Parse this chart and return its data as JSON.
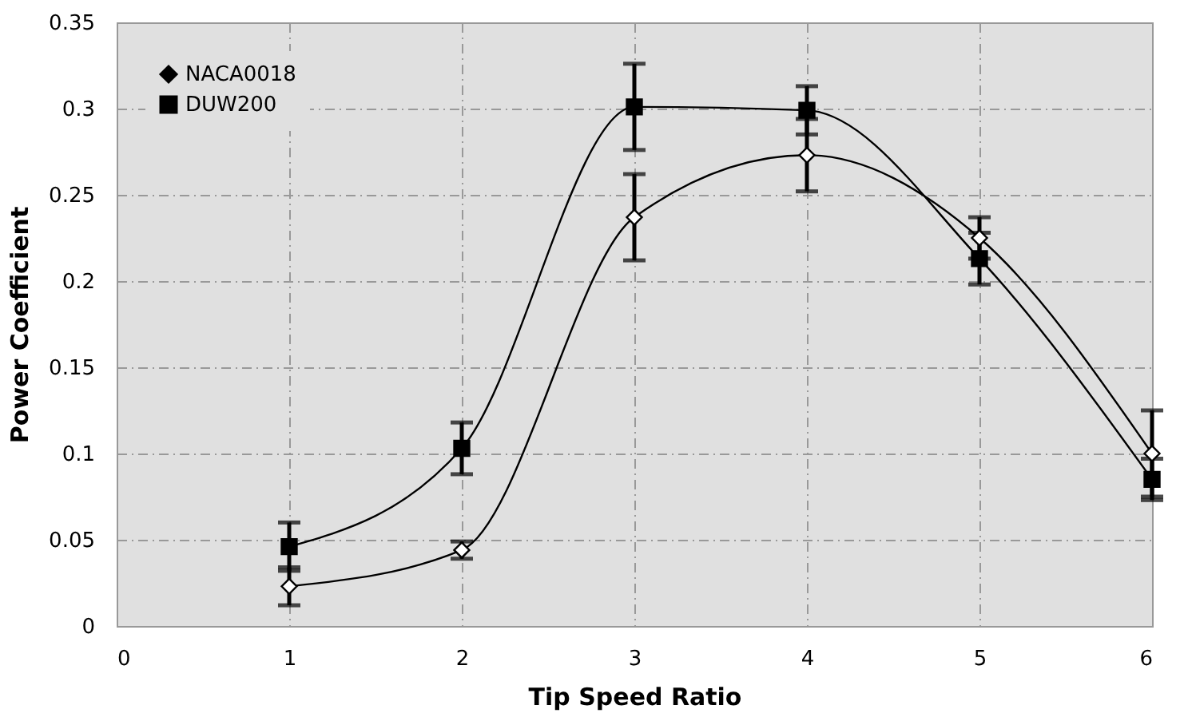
{
  "chart_data": {
    "type": "line",
    "xlabel": "Tip Speed Ratio",
    "ylabel": "Power Coefficient",
    "x": [
      1,
      2,
      3,
      4,
      5,
      6
    ],
    "series": [
      {
        "name": "NACA0018",
        "color": "#000000",
        "marker": "diamond",
        "values": [
          0.023,
          0.044,
          0.237,
          0.273,
          0.225,
          0.1
        ],
        "errors": [
          0.011,
          0.005,
          0.025,
          0.021,
          0.012,
          0.025
        ]
      },
      {
        "name": "DUW200",
        "color": "#000000",
        "marker": "square",
        "values": [
          0.046,
          0.103,
          0.301,
          0.299,
          0.213,
          0.085
        ],
        "errors": [
          0.014,
          0.015,
          0.025,
          0.014,
          0.015,
          0.012
        ]
      }
    ],
    "xlim": [
      0,
      6
    ],
    "xticks": [
      0,
      1,
      2,
      3,
      4,
      5,
      6
    ],
    "ylim": [
      0,
      0.35
    ],
    "yticks": [
      0,
      0.05,
      0.1,
      0.15,
      0.2,
      0.25,
      0.3,
      0.35
    ],
    "grid": true,
    "legend": "top left",
    "line_style": "solid"
  }
}
